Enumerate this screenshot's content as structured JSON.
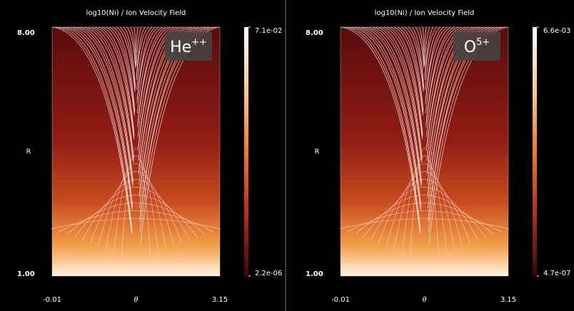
{
  "chart_data": [
    {
      "type": "heatmap",
      "title": "log10(Ni) / Ion Velocity Field",
      "xlabel": "θ",
      "ylabel": "R",
      "xlim": [
        -0.01,
        3.15
      ],
      "xticks": [
        -0.01,
        3.15
      ],
      "ylim": [
        1,
        8
      ],
      "yticks": [
        {
          "value": 1,
          "label": "1.00"
        },
        {
          "value": 8,
          "label": "8.00"
        }
      ],
      "annotation": {
        "text": "He",
        "sup": "++"
      },
      "colorbar": {
        "log": true,
        "lim": [
          2.2e-06,
          0.071
        ],
        "ticks": [
          {
            "value": 0.071,
            "label": "7.1e-02"
          },
          {
            "value": 2.2e-06,
            "label": "2.2e-06"
          }
        ]
      }
    },
    {
      "type": "heatmap",
      "title": "log10(Ni) / Ion Velocity Field",
      "xlabel": "θ",
      "ylabel": "R",
      "xlim": [
        -0.01,
        3.15
      ],
      "xticks": [
        -0.01,
        3.15
      ],
      "ylim": [
        1,
        8
      ],
      "yticks": [
        {
          "value": 1,
          "label": "1.00"
        },
        {
          "value": 8,
          "label": "8.00"
        }
      ],
      "annotation": {
        "text": "O",
        "sup": "5+"
      },
      "colorbar": {
        "log": true,
        "lim": [
          4.7e-07,
          0.0066
        ],
        "ticks": [
          {
            "value": 0.0066,
            "label": "6.6e-03"
          },
          {
            "value": 4.7e-07,
            "label": "4.7e-07"
          }
        ]
      }
    }
  ]
}
